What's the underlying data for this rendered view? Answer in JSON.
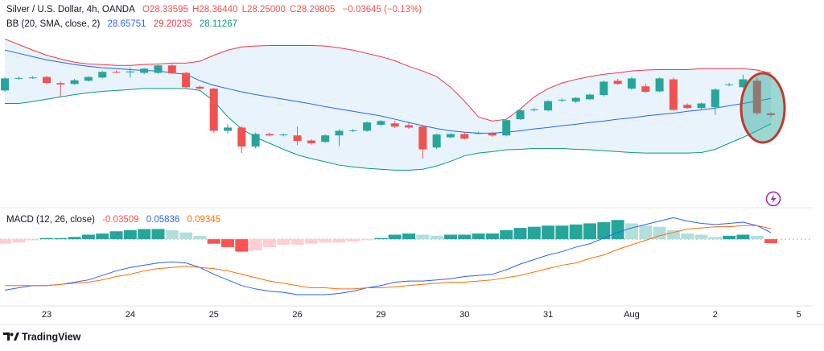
{
  "chart_data": {
    "type": "candlestick",
    "title": "Silver / U.S. Dollar, 4h, OANDA",
    "ohlc_labels": [
      "O28.33595",
      "H28.36440",
      "L28.25000",
      "C28.29805"
    ],
    "change": "−0.03645 (−0.13%)",
    "xlim": [
      -0.35,
      58.0
    ],
    "xticks": [
      {
        "value": 3,
        "label": "23"
      },
      {
        "value": 9,
        "label": "24"
      },
      {
        "value": 15,
        "label": "25"
      },
      {
        "value": 21,
        "label": "26"
      },
      {
        "value": 27,
        "label": "29"
      },
      {
        "value": 33,
        "label": "30"
      },
      {
        "value": 39,
        "label": "31"
      },
      {
        "value": 45,
        "label": "Aug"
      },
      {
        "value": 51,
        "label": "2"
      },
      {
        "value": 57,
        "label": "5"
      }
    ],
    "ylim": [
      26.7,
      30.0
    ],
    "up_color": "#26a69a",
    "down_color": "#ef5350",
    "candles": [
      [
        28.83,
        29.12,
        28.8,
        29.09
      ],
      [
        29.09,
        29.13,
        29.06,
        29.1
      ],
      [
        29.1,
        29.14,
        29.08,
        29.11
      ],
      [
        29.12,
        29.15,
        28.96,
        28.99
      ],
      [
        28.99,
        29.03,
        28.69,
        28.96
      ],
      [
        28.97,
        29.08,
        28.95,
        29.05
      ],
      [
        29.04,
        29.14,
        29.02,
        29.12
      ],
      [
        29.11,
        29.25,
        29.09,
        29.23
      ],
      [
        29.23,
        29.26,
        29.2,
        29.22
      ],
      [
        29.22,
        29.33,
        29.11,
        29.24
      ],
      [
        29.21,
        29.31,
        29.18,
        29.3
      ],
      [
        29.21,
        29.38,
        29.19,
        29.37
      ],
      [
        29.37,
        29.4,
        29.18,
        29.2
      ],
      [
        29.21,
        29.23,
        28.88,
        28.9
      ],
      [
        28.91,
        28.93,
        28.85,
        28.87
      ],
      [
        28.87,
        28.89,
        27.92,
        27.96
      ],
      [
        27.96,
        28.1,
        27.9,
        28.03
      ],
      [
        28.03,
        28.06,
        27.48,
        27.62
      ],
      [
        27.62,
        27.92,
        27.58,
        27.89
      ],
      [
        27.89,
        27.92,
        27.84,
        27.86
      ],
      [
        27.87,
        27.9,
        27.84,
        27.88
      ],
      [
        27.86,
        28.05,
        27.65,
        27.74
      ],
      [
        27.75,
        27.78,
        27.66,
        27.69
      ],
      [
        27.72,
        27.88,
        27.7,
        27.86
      ],
      [
        27.86,
        27.99,
        27.63,
        27.96
      ],
      [
        27.96,
        28.0,
        27.93,
        27.97
      ],
      [
        27.96,
        28.16,
        27.94,
        28.14
      ],
      [
        28.09,
        28.19,
        28.05,
        28.17
      ],
      [
        28.12,
        28.18,
        28.02,
        28.05
      ],
      [
        28.08,
        28.14,
        28.0,
        28.03
      ],
      [
        28.05,
        28.09,
        27.36,
        27.56
      ],
      [
        27.6,
        27.9,
        27.56,
        27.88
      ],
      [
        27.82,
        27.91,
        27.8,
        27.89
      ],
      [
        27.89,
        27.94,
        27.77,
        27.79
      ],
      [
        27.9,
        27.94,
        27.88,
        27.91
      ],
      [
        27.91,
        27.94,
        27.83,
        27.86
      ],
      [
        27.86,
        28.2,
        27.84,
        28.19
      ],
      [
        28.21,
        28.42,
        28.19,
        28.4
      ],
      [
        28.41,
        28.45,
        28.38,
        28.42
      ],
      [
        28.4,
        28.62,
        28.38,
        28.6
      ],
      [
        28.62,
        28.66,
        28.58,
        28.63
      ],
      [
        28.59,
        28.69,
        28.56,
        28.67
      ],
      [
        28.64,
        28.76,
        28.62,
        28.74
      ],
      [
        28.73,
        29.04,
        28.7,
        29.02
      ],
      [
        29.04,
        29.08,
        28.95,
        28.97
      ],
      [
        28.87,
        29.12,
        28.84,
        29.09
      ],
      [
        28.92,
        28.98,
        28.78,
        28.8
      ],
      [
        28.81,
        29.11,
        28.79,
        29.09
      ],
      [
        29.07,
        29.11,
        28.39,
        28.41
      ],
      [
        28.52,
        28.55,
        28.43,
        28.45
      ],
      [
        28.45,
        28.57,
        28.42,
        28.55
      ],
      [
        28.47,
        28.88,
        28.3,
        28.85
      ],
      [
        28.95,
        28.99,
        28.92,
        28.96
      ],
      [
        28.9,
        29.17,
        28.88,
        29.07
      ],
      [
        29.04,
        29.1,
        28.3,
        28.34
      ],
      [
        28.33595,
        28.3644,
        28.25,
        28.29805
      ]
    ],
    "bands": {
      "label": "BB (20, SMA, close, 2)",
      "fill": "#e8f3fb",
      "middle": {
        "color": "#2962ff",
        "values": [
          29.7,
          29.63,
          29.56,
          29.49,
          29.44,
          29.39,
          29.35,
          29.32,
          29.3,
          29.28,
          29.26,
          29.25,
          29.21,
          29.18,
          29.04,
          28.94,
          28.87,
          28.8,
          28.74,
          28.69,
          28.64,
          28.59,
          28.54,
          28.48,
          28.43,
          28.38,
          28.33,
          28.28,
          28.21,
          28.14,
          28.07,
          28.01,
          27.96,
          27.93,
          27.91,
          27.91,
          27.93,
          27.96,
          28.0,
          28.03,
          28.07,
          28.1,
          28.14,
          28.17,
          28.21,
          28.24,
          28.28,
          28.31,
          28.34,
          28.38,
          28.41,
          28.45,
          28.5,
          28.55,
          28.6,
          28.65751
        ]
      },
      "upper": {
        "color": "#f23645",
        "values": [
          29.94,
          29.82,
          29.7,
          29.59,
          29.51,
          29.44,
          29.4,
          29.39,
          29.37,
          29.37,
          29.39,
          29.4,
          29.42,
          29.42,
          29.46,
          29.59,
          29.7,
          29.77,
          29.79,
          29.8,
          29.8,
          29.8,
          29.8,
          29.79,
          29.75,
          29.7,
          29.63,
          29.56,
          29.47,
          29.35,
          29.25,
          29.13,
          28.9,
          28.6,
          28.26,
          28.17,
          28.21,
          28.43,
          28.69,
          28.87,
          28.99,
          29.07,
          29.13,
          29.18,
          29.21,
          29.25,
          29.27,
          29.28,
          29.28,
          29.28,
          29.3,
          29.3,
          29.3,
          29.3,
          29.27,
          29.20235
        ]
      },
      "lower": {
        "color": "#089981",
        "values": [
          28.55,
          28.55,
          28.59,
          28.64,
          28.69,
          28.74,
          28.78,
          28.81,
          28.83,
          28.85,
          28.87,
          28.87,
          28.87,
          28.87,
          28.83,
          28.6,
          28.26,
          28.0,
          27.82,
          27.69,
          27.56,
          27.44,
          27.36,
          27.29,
          27.22,
          27.18,
          27.15,
          27.13,
          27.11,
          27.11,
          27.13,
          27.2,
          27.3,
          27.42,
          27.48,
          27.51,
          27.55,
          27.56,
          27.58,
          27.58,
          27.58,
          27.56,
          27.55,
          27.53,
          27.51,
          27.49,
          27.48,
          27.48,
          27.48,
          27.48,
          27.49,
          27.56,
          27.69,
          27.82,
          27.96,
          28.11267
        ]
      }
    },
    "macd": {
      "label": "MACD (12, 26, close)",
      "ylim": [
        -0.59,
        0.25
      ],
      "histogram": {
        "rise_up": "#26a69a",
        "fall_up": "#b2dfdb",
        "rise_down": "#ffcdd2",
        "fall_down": "#ff5252",
        "values": [
          -0.04,
          -0.03,
          -0.01,
          0.01,
          0.01,
          0.02,
          0.04,
          0.05,
          0.07,
          0.08,
          0.09,
          0.09,
          0.08,
          0.06,
          0.03,
          -0.04,
          -0.07,
          -0.11,
          -0.1,
          -0.07,
          -0.05,
          -0.05,
          -0.04,
          -0.03,
          -0.03,
          -0.02,
          -0.01,
          0.01,
          0.04,
          0.05,
          0.04,
          0.03,
          0.04,
          0.04,
          0.05,
          0.05,
          0.08,
          0.1,
          0.11,
          0.12,
          0.12,
          0.13,
          0.14,
          0.15,
          0.17,
          0.14,
          0.12,
          0.11,
          0.08,
          0.05,
          0.04,
          0.02,
          0.03,
          0.04,
          0.03,
          -0.03509
        ]
      },
      "macd_line": {
        "color": "#2962ff",
        "values": [
          -0.45,
          -0.43,
          -0.41,
          -0.41,
          -0.4,
          -0.38,
          -0.36,
          -0.32,
          -0.28,
          -0.25,
          -0.23,
          -0.21,
          -0.2,
          -0.21,
          -0.25,
          -0.31,
          -0.36,
          -0.41,
          -0.44,
          -0.46,
          -0.47,
          -0.49,
          -0.49,
          -0.49,
          -0.48,
          -0.46,
          -0.43,
          -0.41,
          -0.38,
          -0.37,
          -0.37,
          -0.36,
          -0.35,
          -0.33,
          -0.32,
          -0.31,
          -0.27,
          -0.22,
          -0.18,
          -0.14,
          -0.11,
          -0.07,
          -0.04,
          0.01,
          0.06,
          0.1,
          0.13,
          0.16,
          0.19,
          0.16,
          0.14,
          0.13,
          0.14,
          0.15,
          0.12,
          0.05836
        ]
      },
      "signal_line": {
        "color": "#ff6d00",
        "values": [
          -0.41,
          -0.41,
          -0.41,
          -0.41,
          -0.4,
          -0.39,
          -0.38,
          -0.36,
          -0.33,
          -0.31,
          -0.28,
          -0.26,
          -0.25,
          -0.24,
          -0.25,
          -0.26,
          -0.28,
          -0.31,
          -0.34,
          -0.37,
          -0.39,
          -0.41,
          -0.43,
          -0.43,
          -0.44,
          -0.44,
          -0.43,
          -0.43,
          -0.42,
          -0.41,
          -0.4,
          -0.39,
          -0.38,
          -0.38,
          -0.37,
          -0.36,
          -0.34,
          -0.32,
          -0.29,
          -0.26,
          -0.23,
          -0.21,
          -0.17,
          -0.14,
          -0.09,
          -0.05,
          -0.01,
          0.03,
          0.06,
          0.09,
          0.1,
          0.11,
          0.11,
          0.12,
          0.12,
          0.09345
        ]
      }
    }
  },
  "footer": {
    "brand": "TradingView"
  }
}
